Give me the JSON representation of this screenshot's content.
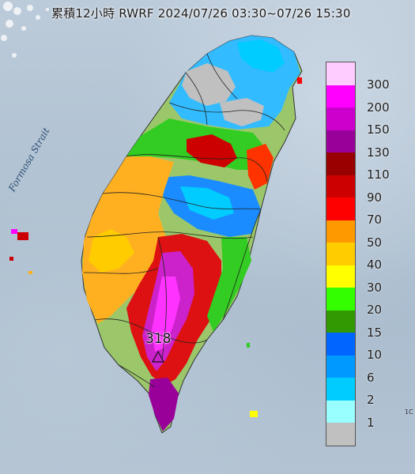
{
  "title": "累積12小時 RWRF 2024/07/26 03:30~07/26 15:30",
  "strait_label": "Formosa Strait",
  "max_value": "318",
  "edge_mark": "1C",
  "legend": {
    "unit_levels": [
      {
        "label": "300",
        "color": "#ffccff"
      },
      {
        "label": "200",
        "color": "#ff00ff"
      },
      {
        "label": "150",
        "color": "#cc00cc"
      },
      {
        "label": "130",
        "color": "#990099"
      },
      {
        "label": "110",
        "color": "#990000"
      },
      {
        "label": "90",
        "color": "#cc0000"
      },
      {
        "label": "70",
        "color": "#ff0000"
      },
      {
        "label": "50",
        "color": "#ff9900"
      },
      {
        "label": "40",
        "color": "#ffcc00"
      },
      {
        "label": "30",
        "color": "#ffff00"
      },
      {
        "label": "20",
        "color": "#33ff00"
      },
      {
        "label": "15",
        "color": "#339900"
      },
      {
        "label": "10",
        "color": "#0066ff"
      },
      {
        "label": "6",
        "color": "#0099ff"
      },
      {
        "label": "2",
        "color": "#00ccff"
      },
      {
        "label": "1",
        "color": "#99ffff"
      },
      {
        "label": "",
        "color": "#c0c0c0"
      }
    ]
  },
  "map_layers": {
    "land_base_color": "#9bc76a",
    "north_gray_color": "#c0c0c0",
    "north_blue_color": "#33bbff",
    "west_orange_color": "#ffb020",
    "mountain_red_color": "#dd1111",
    "peak_magenta_color": "#cc22cc",
    "boundary_color": "#222222"
  }
}
